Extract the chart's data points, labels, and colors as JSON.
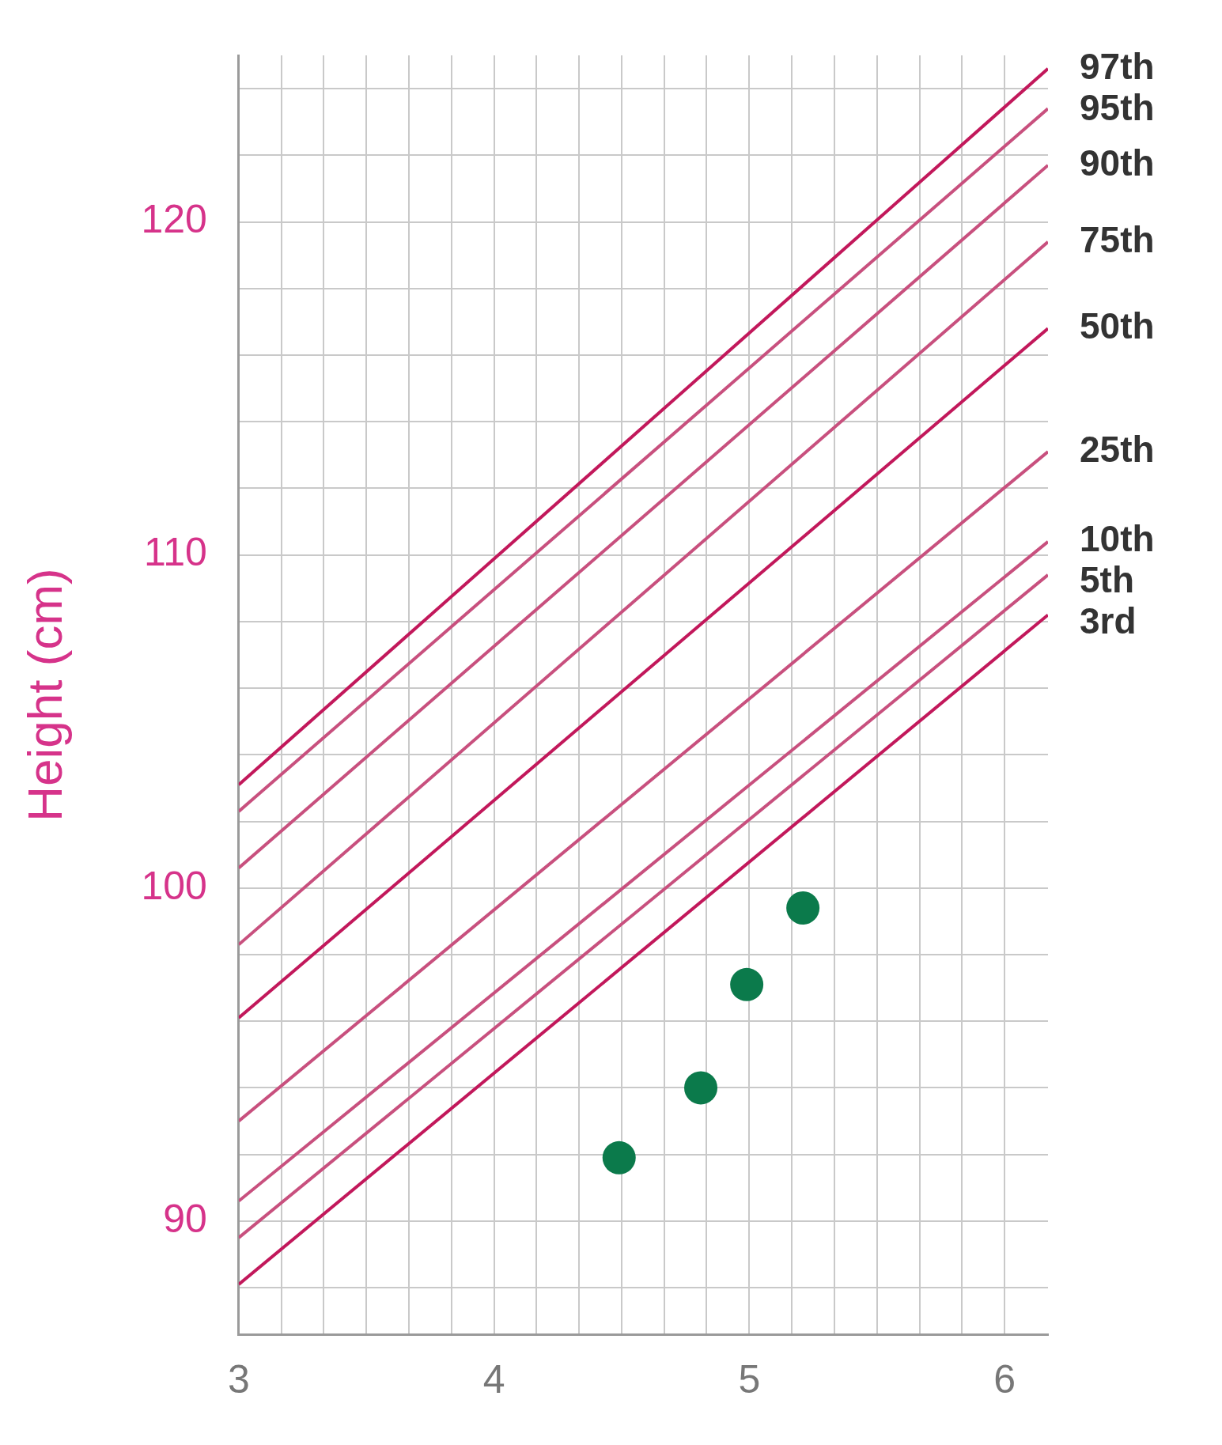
{
  "chart_data": {
    "type": "line",
    "ylabel": "Height (cm)",
    "xlim": [
      3,
      6.17
    ],
    "ylim": [
      86.6,
      125
    ],
    "xticks": [
      3,
      {
        "value": 3.167,
        "label": null
      },
      {
        "value": 3.333,
        "label": null
      },
      {
        "value": 3.5,
        "label": null
      },
      {
        "value": 3.667,
        "label": null
      },
      {
        "value": 3.833,
        "label": null
      },
      4,
      {
        "value": 4.167,
        "label": null
      },
      {
        "value": 4.333,
        "label": null
      },
      {
        "value": 4.5,
        "label": null
      },
      {
        "value": 4.667,
        "label": null
      },
      {
        "value": 4.833,
        "label": null
      },
      5,
      {
        "value": 5.167,
        "label": null
      },
      {
        "value": 5.333,
        "label": null
      },
      {
        "value": 5.5,
        "label": null
      },
      {
        "value": 5.667,
        "label": null
      },
      {
        "value": 5.833,
        "label": null
      },
      6
    ],
    "yticks": [
      {
        "value": 88,
        "label": null
      },
      90,
      {
        "value": 92,
        "label": null
      },
      {
        "value": 94,
        "label": null
      },
      {
        "value": 96,
        "label": null
      },
      {
        "value": 98,
        "label": null
      },
      100,
      {
        "value": 102,
        "label": null
      },
      {
        "value": 104,
        "label": null
      },
      {
        "value": 106,
        "label": null
      },
      {
        "value": 108,
        "label": null
      },
      110,
      {
        "value": 112,
        "label": null
      },
      {
        "value": 114,
        "label": null
      },
      {
        "value": 116,
        "label": null
      },
      {
        "value": 118,
        "label": null
      },
      120,
      {
        "value": 122,
        "label": null
      },
      {
        "value": 124,
        "label": null
      }
    ],
    "grid": true,
    "legend": false,
    "series": [
      {
        "name": "97th",
        "color": "#c2185b",
        "x": [
          3,
          6.17
        ],
        "values": [
          103.1,
          124.6
        ],
        "marker": "none"
      },
      {
        "name": "95th",
        "color": "#c8507e",
        "x": [
          3,
          6.17
        ],
        "values": [
          102.3,
          123.4
        ],
        "marker": "none"
      },
      {
        "name": "90th",
        "color": "#c8507e",
        "x": [
          3,
          6.17
        ],
        "values": [
          100.6,
          121.7
        ],
        "marker": "none"
      },
      {
        "name": "75th",
        "color": "#c8507e",
        "x": [
          3,
          6.17
        ],
        "values": [
          98.3,
          119.4
        ],
        "marker": "none"
      },
      {
        "name": "50th",
        "color": "#c2185b",
        "x": [
          3,
          6.17
        ],
        "values": [
          96.1,
          116.8
        ],
        "marker": "none"
      },
      {
        "name": "25th",
        "color": "#c8507e",
        "x": [
          3,
          6.17
        ],
        "values": [
          93.0,
          113.1
        ],
        "marker": "none"
      },
      {
        "name": "10th",
        "color": "#c8507e",
        "x": [
          3,
          6.17
        ],
        "values": [
          90.6,
          110.4
        ],
        "marker": "none"
      },
      {
        "name": "5th",
        "color": "#c8507e",
        "x": [
          3,
          6.17
        ],
        "values": [
          89.5,
          109.4
        ],
        "marker": "none"
      },
      {
        "name": "3rd",
        "color": "#c2185b",
        "x": [
          3,
          6.17
        ],
        "values": [
          88.1,
          108.2
        ],
        "marker": "none"
      },
      {
        "type": "scatter",
        "color": "#0b7a4b",
        "x": [
          4.49,
          4.81,
          4.99,
          5.21
        ],
        "values": [
          91.9,
          94.0,
          97.1,
          99.4
        ],
        "marker": "circle"
      }
    ]
  }
}
